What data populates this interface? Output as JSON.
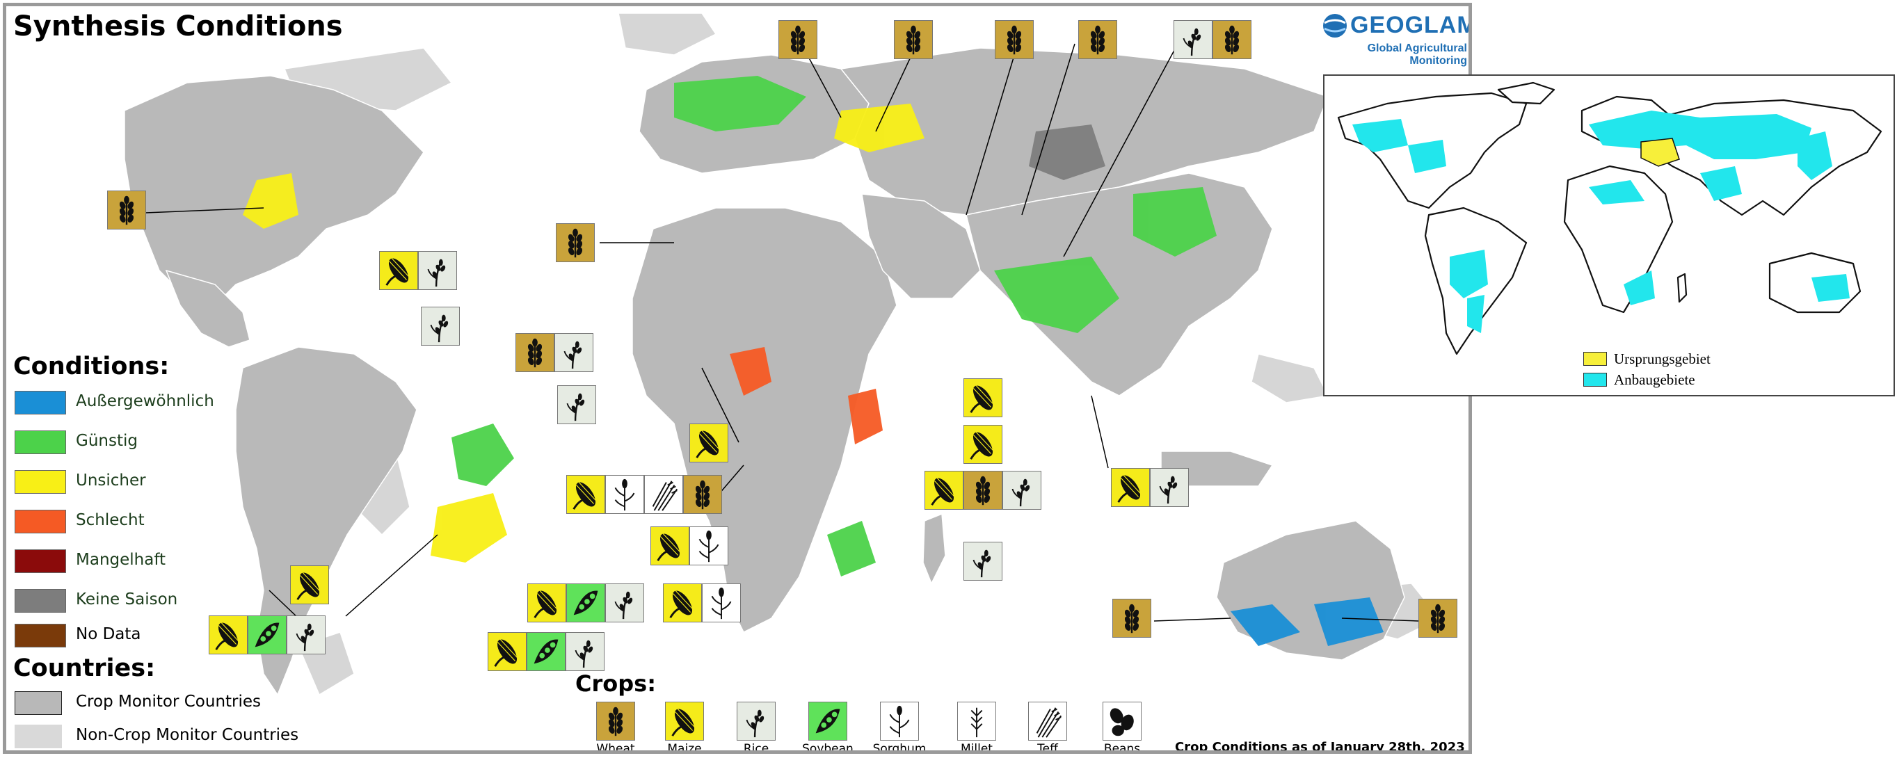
{
  "map": {
    "title": "Synthesis Conditions",
    "date_note": "Crop Conditions as of January 28th, 2023"
  },
  "logo": {
    "word": "GEOGLAM",
    "subtitle": "Global Agricultural Monitoring"
  },
  "conditions": {
    "heading": "Conditions:",
    "items": [
      {
        "label": "Außergewöhnlich",
        "color": "#1a8fd6"
      },
      {
        "label": "Günstig",
        "color": "#4cd24a"
      },
      {
        "label": "Unsicher",
        "color": "#f8ef16"
      },
      {
        "label": "Schlecht",
        "color": "#f55a24"
      },
      {
        "label": "Mangelhaft",
        "color": "#8b0b0b"
      },
      {
        "label": "Keine Saison",
        "color": "#7d7d7d"
      },
      {
        "label": "No Data",
        "color": "#7a3a0a"
      }
    ]
  },
  "countries": {
    "heading": "Countries:",
    "items": [
      {
        "label": "Crop Monitor Countries",
        "color": "#b8b8b8"
      },
      {
        "label": "Non-Crop Monitor Countries",
        "color": "#d9d9d9"
      }
    ]
  },
  "crops": {
    "heading": "Crops:",
    "items": [
      {
        "label": "Wheat",
        "icon": "wheat-icon"
      },
      {
        "label": "Maize",
        "icon": "maize-icon"
      },
      {
        "label": "Rice",
        "icon": "rice-icon"
      },
      {
        "label": "Soybean",
        "icon": "soybean-icon"
      },
      {
        "label": "Sorghum",
        "icon": "sorghum-icon"
      },
      {
        "label": "Millet",
        "icon": "millet-icon"
      },
      {
        "label": "Teff",
        "icon": "teff-icon"
      },
      {
        "label": "Beans",
        "icon": "beans-icon"
      }
    ]
  },
  "inset": {
    "legend": [
      {
        "label": "Ursprungsgebiet",
        "color": "#f7ef3a"
      },
      {
        "label": "Anbaugebiete",
        "color": "#22e6ec"
      }
    ]
  }
}
